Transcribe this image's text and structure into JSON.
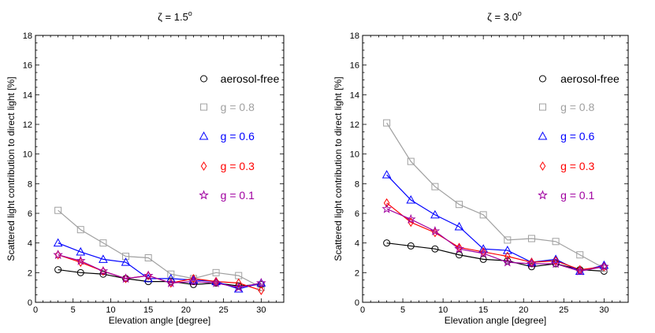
{
  "chart_data": [
    {
      "type": "line",
      "title_symbol": "ζ",
      "title_value": " = 1.5",
      "title_sup": "o",
      "xlabel": "Elevation angle [degree]",
      "ylabel": "Scattered light contribution to direct light [%]",
      "xlim": [
        0,
        33
      ],
      "ylim": [
        0,
        18
      ],
      "xticks": [
        0,
        5,
        10,
        15,
        20,
        25,
        30
      ],
      "yticks": [
        0,
        2,
        4,
        6,
        8,
        10,
        12,
        14,
        16,
        18
      ],
      "x": [
        3,
        6,
        9,
        12,
        15,
        18,
        21,
        24,
        27,
        30
      ],
      "series": [
        {
          "name": "aerosol-free",
          "color": "#000000",
          "marker": "circle",
          "values": [
            2.2,
            2.0,
            1.9,
            1.6,
            1.4,
            1.4,
            1.2,
            1.3,
            1.1,
            1.2
          ]
        },
        {
          "name": "g = 0.8",
          "color": "#a0a0a0",
          "marker": "square",
          "values": [
            6.2,
            4.9,
            4.0,
            3.1,
            3.0,
            1.9,
            1.6,
            2.0,
            1.8,
            1.0
          ]
        },
        {
          "name": "g = 0.6",
          "color": "#0000ff",
          "marker": "triangle",
          "values": [
            4.0,
            3.4,
            2.9,
            2.7,
            1.6,
            1.6,
            1.5,
            1.4,
            0.9,
            1.3
          ]
        },
        {
          "name": "g = 0.3",
          "color": "#ff0000",
          "marker": "diamond",
          "values": [
            3.2,
            2.7,
            2.1,
            1.6,
            1.8,
            1.3,
            1.6,
            1.4,
            1.3,
            0.8
          ]
        },
        {
          "name": "g = 0.1",
          "color": "#a000a0",
          "marker": "star",
          "values": [
            3.2,
            2.8,
            2.1,
            1.6,
            1.8,
            1.3,
            1.4,
            1.3,
            1.0,
            1.3
          ]
        }
      ]
    },
    {
      "type": "line",
      "title_symbol": "ζ",
      "title_value": " = 3.0",
      "title_sup": "o",
      "xlabel": "Elevation angle [degree]",
      "ylabel": "Scattered light contribution to direct light [%]",
      "xlim": [
        0,
        33
      ],
      "ylim": [
        0,
        18
      ],
      "xticks": [
        0,
        5,
        10,
        15,
        20,
        25,
        30
      ],
      "yticks": [
        0,
        2,
        4,
        6,
        8,
        10,
        12,
        14,
        16,
        18
      ],
      "x": [
        3,
        6,
        9,
        12,
        15,
        18,
        21,
        24,
        27,
        30
      ],
      "series": [
        {
          "name": "aerosol-free",
          "color": "#000000",
          "marker": "circle",
          "values": [
            4.0,
            3.8,
            3.6,
            3.2,
            2.9,
            2.8,
            2.4,
            2.6,
            2.2,
            2.1
          ]
        },
        {
          "name": "g = 0.8",
          "color": "#a0a0a0",
          "marker": "square",
          "values": [
            12.1,
            9.5,
            7.8,
            6.6,
            5.9,
            4.2,
            4.3,
            4.1,
            3.2,
            2.3
          ]
        },
        {
          "name": "g = 0.6",
          "color": "#0000ff",
          "marker": "triangle",
          "values": [
            8.6,
            6.9,
            5.9,
            5.1,
            3.6,
            3.5,
            2.7,
            2.9,
            2.1,
            2.5
          ]
        },
        {
          "name": "g = 0.3",
          "color": "#ff0000",
          "marker": "diamond",
          "values": [
            6.7,
            5.4,
            4.7,
            3.7,
            3.4,
            3.1,
            2.7,
            2.8,
            2.2,
            2.4
          ]
        },
        {
          "name": "g = 0.1",
          "color": "#a000a0",
          "marker": "star",
          "values": [
            6.3,
            5.6,
            4.8,
            3.6,
            3.3,
            2.7,
            2.6,
            2.6,
            2.1,
            2.4
          ]
        }
      ]
    }
  ]
}
